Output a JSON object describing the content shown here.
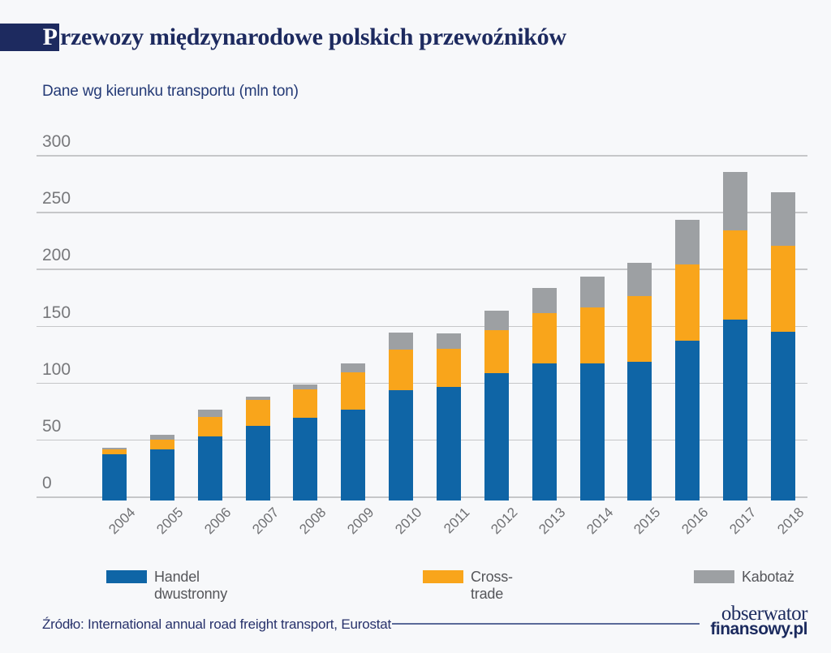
{
  "header": {
    "title": "Przewozy międzynarodowe polskich przewoźników",
    "subtitle": "Dane wg kierunku transportu (mln ton)"
  },
  "chart_data": {
    "type": "bar",
    "stacked": true,
    "title": "Przewozy międzynarodowe polskich przewoźników",
    "subtitle": "Dane wg kierunku transportu (mln ton)",
    "unit": "mln ton",
    "categories": [
      "2004",
      "2005",
      "2006",
      "2007",
      "2008",
      "2009",
      "2010",
      "2011",
      "2012",
      "2013",
      "2014",
      "2015",
      "2016",
      "2017",
      "2018"
    ],
    "series": [
      {
        "name": "Handel dwustronny",
        "color": "#0f65a6",
        "values": [
          37,
          41,
          53,
          62,
          69,
          76,
          93,
          96,
          108,
          117,
          117,
          118,
          137,
          155,
          145
        ]
      },
      {
        "name": "Cross-trade",
        "color": "#f9a51b",
        "values": [
          4,
          9,
          17,
          23,
          25,
          33,
          36,
          34,
          38,
          44,
          49,
          58,
          67,
          79,
          75
        ]
      },
      {
        "name": "Kabotaż",
        "color": "#9da0a3",
        "values": [
          2,
          4,
          6,
          3,
          4,
          8,
          15,
          13,
          17,
          22,
          27,
          29,
          39,
          51,
          47
        ]
      }
    ],
    "totals": [
      43,
      54,
      76,
      88,
      98,
      117,
      144,
      143,
      163,
      183,
      193,
      205,
      243,
      285,
      267
    ],
    "ylim": [
      0,
      300
    ],
    "yticks": [
      0,
      50,
      100,
      150,
      200,
      250,
      300
    ],
    "grid": true,
    "legend_position": "bottom",
    "xlabel_rotation": -45
  },
  "footer": {
    "source": "Źródło: International annual road freight transport, Eurostat",
    "logo_line1": "obserwator",
    "logo_line2": "finansowy.pl"
  },
  "colors": {
    "background": "#f7f8fa",
    "title_navy": "#1d2a5f",
    "subtitle_navy": "#243a76",
    "axis_text": "#77787b",
    "gridline": "#c6c7c9",
    "legend_text": "#55565a",
    "footer_navy": "#27316b",
    "bar_blue": "#0f65a6",
    "bar_orange": "#f9a51b",
    "bar_gray": "#9da0a3"
  }
}
